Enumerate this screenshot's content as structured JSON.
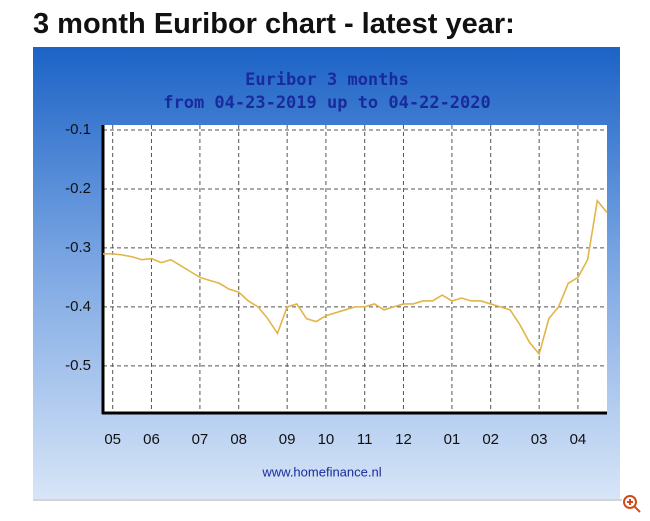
{
  "heading": "3 month Euribor chart - latest year:",
  "chart_data": {
    "type": "line",
    "title": [
      "Euribor 3 months",
      "from 04-23-2019 up to 04-22-2020"
    ],
    "source": "www.homefinance.nl",
    "categories": [
      null,
      "05",
      null,
      null,
      null,
      "06",
      null,
      null,
      null,
      null,
      "07",
      null,
      null,
      null,
      "08",
      null,
      null,
      null,
      null,
      "09",
      null,
      null,
      null,
      "10",
      null,
      null,
      null,
      "11",
      null,
      null,
      null,
      "12",
      null,
      null,
      null,
      null,
      "01",
      null,
      null,
      null,
      "02",
      null,
      null,
      null,
      null,
      "03",
      null,
      null,
      null,
      "04",
      null,
      null,
      null
    ],
    "series": [
      {
        "name": "Euribor 3 months",
        "color": "#e2b548",
        "values": [
          -0.31,
          -0.31,
          -0.312,
          -0.315,
          -0.32,
          -0.318,
          -0.325,
          -0.32,
          -0.33,
          -0.34,
          -0.35,
          -0.355,
          -0.36,
          -0.37,
          -0.375,
          -0.39,
          -0.4,
          -0.42,
          -0.445,
          -0.4,
          -0.395,
          -0.42,
          -0.425,
          -0.415,
          -0.41,
          -0.405,
          -0.4,
          -0.4,
          -0.395,
          -0.405,
          -0.4,
          -0.395,
          -0.395,
          -0.39,
          -0.39,
          -0.38,
          -0.39,
          -0.385,
          -0.39,
          -0.39,
          -0.395,
          -0.4,
          -0.405,
          -0.43,
          -0.46,
          -0.48,
          -0.42,
          -0.4,
          -0.36,
          -0.35,
          -0.32,
          -0.22,
          -0.24
        ]
      }
    ],
    "ylim": [
      -0.58,
      -0.1
    ],
    "yticks": [
      -0.1,
      -0.2,
      -0.3,
      -0.4,
      -0.5
    ],
    "grid": true
  }
}
